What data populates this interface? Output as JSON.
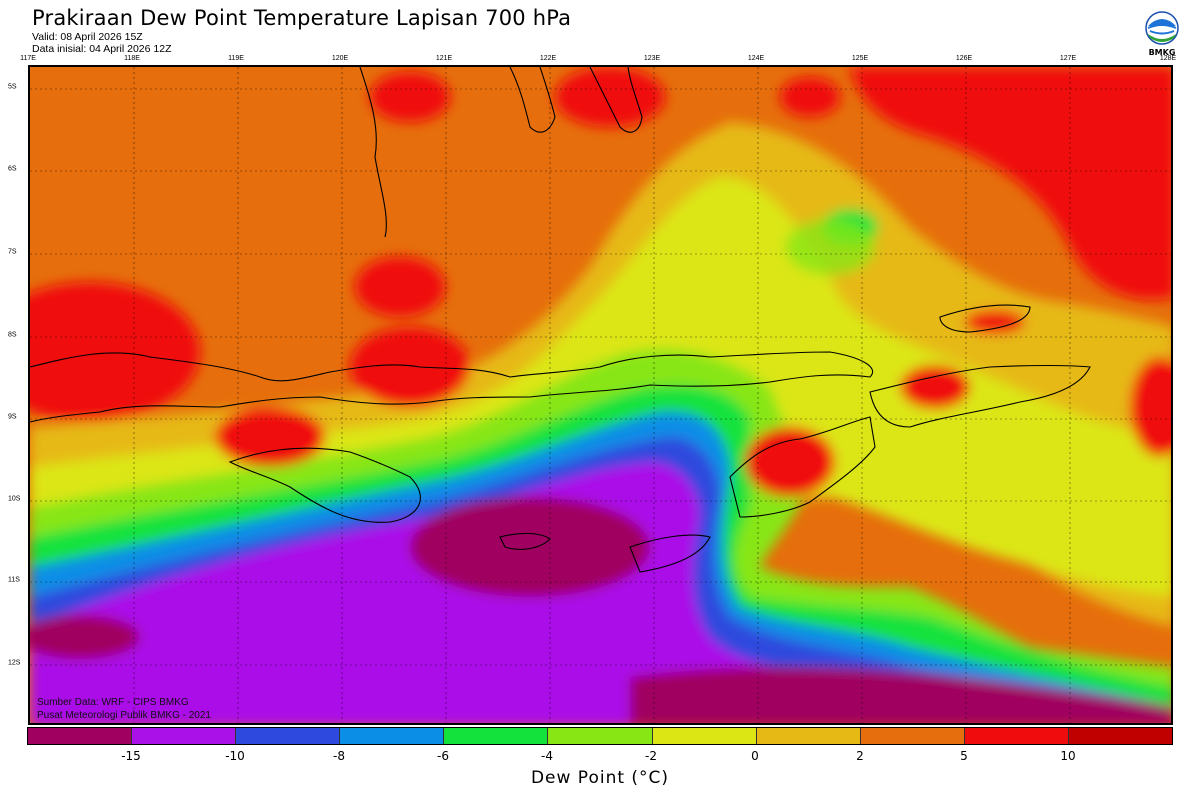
{
  "header": {
    "title": "Prakiraan Dew Point Temperature Lapisan 700 hPa",
    "valid": "Valid: 08 April 2026 15Z",
    "init": "Data inisial: 04 April 2026 12Z"
  },
  "logo": {
    "icon": "bmkg-logo-icon",
    "text": "BMKG"
  },
  "axes": {
    "lon_labels": [
      "117E",
      "118E",
      "119E",
      "120E",
      "121E",
      "122E",
      "123E",
      "124E",
      "125E",
      "126E",
      "127E",
      "128E"
    ],
    "lat_labels": [
      "5S",
      "6S",
      "7S",
      "8S",
      "9S",
      "10S",
      "11S",
      "12S"
    ]
  },
  "credits": {
    "source": "Sumber Data: WRF - CIPS BMKG",
    "org": "Pusat Meteorologi Publik BMKG - 2021"
  },
  "colorbar": {
    "colors": [
      "#a0005f",
      "#aa10e8",
      "#2e4ade",
      "#0a8ee6",
      "#14e23c",
      "#88e614",
      "#dce614",
      "#e6b914",
      "#e66e0c",
      "#f00c0c",
      "#c00000"
    ],
    "tick_labels": [
      "-15",
      "-10",
      "-8",
      "-6",
      "-4",
      "-2",
      "0",
      "2",
      "5",
      "10"
    ],
    "label": "Dew Point (°C)"
  }
}
